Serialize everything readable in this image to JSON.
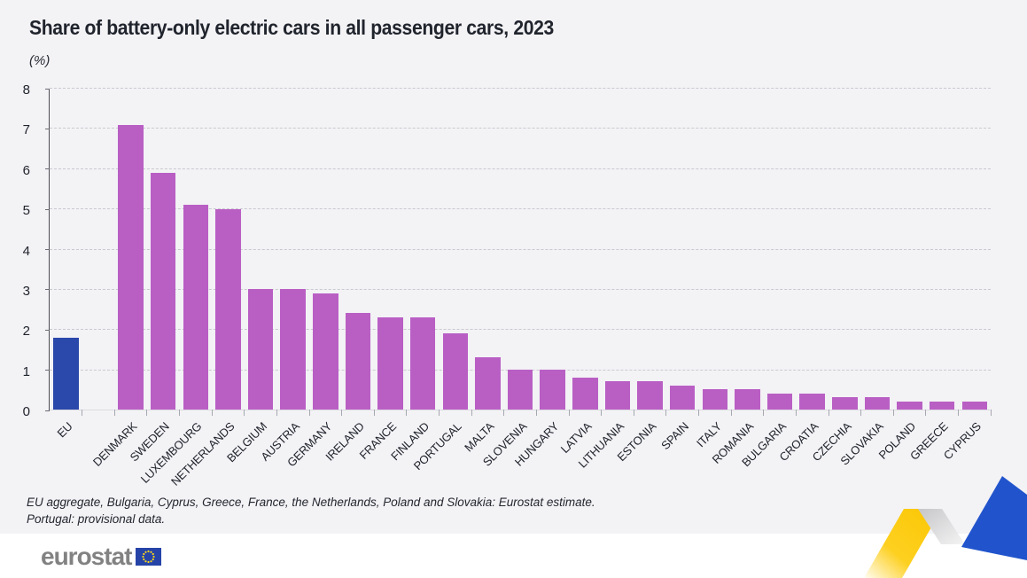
{
  "title": "Share of battery-only electric cars in all passenger cars, 2023",
  "unit_label": "(%)",
  "footnotes": {
    "line1": "EU aggregate, Bulgaria, Cyprus, Greece, France, the Netherlands, Poland and Slovakia: Eurostat estimate.",
    "line2": "Portugal: provisional data."
  },
  "logo": {
    "text": "eurostat",
    "flag_icon": "eu-flag-icon"
  },
  "decoration": {
    "name": "eurostat-trend-ribbon-graphic"
  },
  "colors": {
    "eu_bar": "#2b48ab",
    "country_bar": "#b95fc4",
    "background": "#f3f2f5",
    "footer_background": "#ffffff",
    "flag_blue": "#2644a7",
    "flag_stars": "#ffd617",
    "ribbon_yellow": "#fcc602",
    "ribbon_blue": "#2154cc",
    "gridline": "#c9cad0",
    "logo_gray": "#828282"
  },
  "chart_data": {
    "type": "bar",
    "title": "Share of battery-only electric cars in all passenger cars, 2023",
    "xlabel": "",
    "ylabel": "(%)",
    "ylim": [
      0,
      8
    ],
    "yticks": [
      0,
      1,
      2,
      3,
      4,
      5,
      6,
      7,
      8
    ],
    "grid": "horizontal-dashed",
    "legend": "none",
    "gap_after_first": true,
    "highlight_index": 0,
    "categories": [
      "EU",
      "DENMARK",
      "SWEDEN",
      "LUXEMBOURG",
      "NETHERLANDS",
      "BELGIUM",
      "AUSTRIA",
      "GERMANY",
      "IRELAND",
      "FRANCE",
      "FINLAND",
      "PORTUGAL",
      "MALTA",
      "SLOVENIA",
      "HUNGARY",
      "LATVIA",
      "LITHUANIA",
      "ESTONIA",
      "SPAIN",
      "ITALY",
      "ROMANIA",
      "BULGARIA",
      "CROATIA",
      "CZECHIA",
      "SLOVAKIA",
      "POLAND",
      "GREECE",
      "CYPRUS"
    ],
    "values": [
      1.8,
      7.1,
      5.9,
      5.1,
      5.0,
      3.0,
      3.0,
      2.9,
      2.4,
      2.3,
      2.3,
      1.9,
      1.3,
      1.0,
      1.0,
      0.8,
      0.7,
      0.7,
      0.6,
      0.5,
      0.5,
      0.4,
      0.4,
      0.3,
      0.3,
      0.2,
      0.2,
      0.2
    ]
  }
}
